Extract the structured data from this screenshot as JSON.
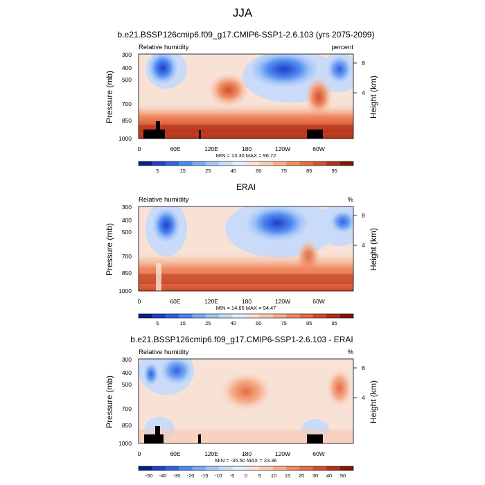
{
  "figure_title": "JJA",
  "chart_data": [
    {
      "type": "heatmap",
      "title": "b.e21.BSSP126cmip6.f09_g17.CMIP6-SSP1-2.6.103 (yrs 2075-2099)",
      "left_label": "Relative humidity",
      "right_label": "percent",
      "xlabel": "",
      "ylabel": "Pressure (mb)",
      "ylabel_right": "Height (km)",
      "x_ticks": [
        "0",
        "60E",
        "120E",
        "180",
        "120W",
        "60W"
      ],
      "y_ticks": [
        "300",
        "400",
        "500",
        "700",
        "850",
        "1000"
      ],
      "y2_ticks": [
        "8",
        "4"
      ],
      "stats": "MIN = 13.30  MAX = 96.72",
      "colorbar_labels": [
        "5",
        "15",
        "25",
        "40",
        "60",
        "75",
        "85",
        "95"
      ],
      "colorbar_colors": [
        "#0a1f86",
        "#1f3fc4",
        "#2f62e3",
        "#4c86f1",
        "#78a8f5",
        "#a3c4f7",
        "#c9dbf8",
        "#e6eef9",
        "#f8e2d6",
        "#f8ccb4",
        "#f5ad8c",
        "#ef8c63",
        "#e56d44",
        "#d24d2b",
        "#b0301a",
        "#7d1709"
      ],
      "value_range": [
        13.3,
        96.72
      ],
      "ylim_mb": [
        1000,
        300
      ]
    },
    {
      "type": "heatmap",
      "title": "ERAI",
      "left_label": "Relative humidity",
      "right_label": "%",
      "xlabel": "",
      "ylabel": "Pressure (mb)",
      "ylabel_right": "Height (km)",
      "x_ticks": [
        "0",
        "60E",
        "120E",
        "180",
        "120W",
        "60W"
      ],
      "y_ticks": [
        "300",
        "400",
        "500",
        "700",
        "850",
        "1000"
      ],
      "y2_ticks": [
        "8",
        "4"
      ],
      "stats": "MIN = 14.65  MAX = 94.47",
      "colorbar_labels": [
        "5",
        "15",
        "25",
        "40",
        "60",
        "75",
        "85",
        "95"
      ],
      "colorbar_colors": [
        "#0a1f86",
        "#1f3fc4",
        "#2f62e3",
        "#4c86f1",
        "#78a8f5",
        "#a3c4f7",
        "#c9dbf8",
        "#e6eef9",
        "#f8e2d6",
        "#f8ccb4",
        "#f5ad8c",
        "#ef8c63",
        "#e56d44",
        "#d24d2b",
        "#b0301a",
        "#7d1709"
      ],
      "value_range": [
        14.65,
        94.47
      ],
      "ylim_mb": [
        1000,
        300
      ]
    },
    {
      "type": "heatmap",
      "title": "b.e21.BSSP126cmip6.f09_g17.CMIP6-SSP1-2.6.103 - ERAI",
      "left_label": "Relative humidity",
      "right_label": "%",
      "xlabel": "",
      "ylabel": "Pressure (mb)",
      "ylabel_right": "Height (km)",
      "x_ticks": [
        "0",
        "60E",
        "120E",
        "180",
        "120W",
        "60W"
      ],
      "y_ticks": [
        "300",
        "400",
        "500",
        "700",
        "850",
        "1000"
      ],
      "y2_ticks": [
        "8",
        "4"
      ],
      "stats": "MIN = -35.50  MAX = 23.36",
      "colorbar_labels": [
        "-50",
        "-40",
        "-30",
        "-20",
        "-15",
        "-10",
        "-5",
        "0",
        "5",
        "10",
        "15",
        "20",
        "30",
        "40",
        "50"
      ],
      "colorbar_colors": [
        "#0a1f86",
        "#1f3fc4",
        "#2f62e3",
        "#4c86f1",
        "#78a8f5",
        "#a3c4f7",
        "#c9dbf8",
        "#e6eef9",
        "#f8e2d6",
        "#f8ccb4",
        "#f5ad8c",
        "#ef8c63",
        "#e56d44",
        "#d24d2b",
        "#b0301a",
        "#7d1709"
      ],
      "value_range": [
        -35.5,
        23.36
      ],
      "ylim_mb": [
        1000,
        300
      ]
    }
  ]
}
